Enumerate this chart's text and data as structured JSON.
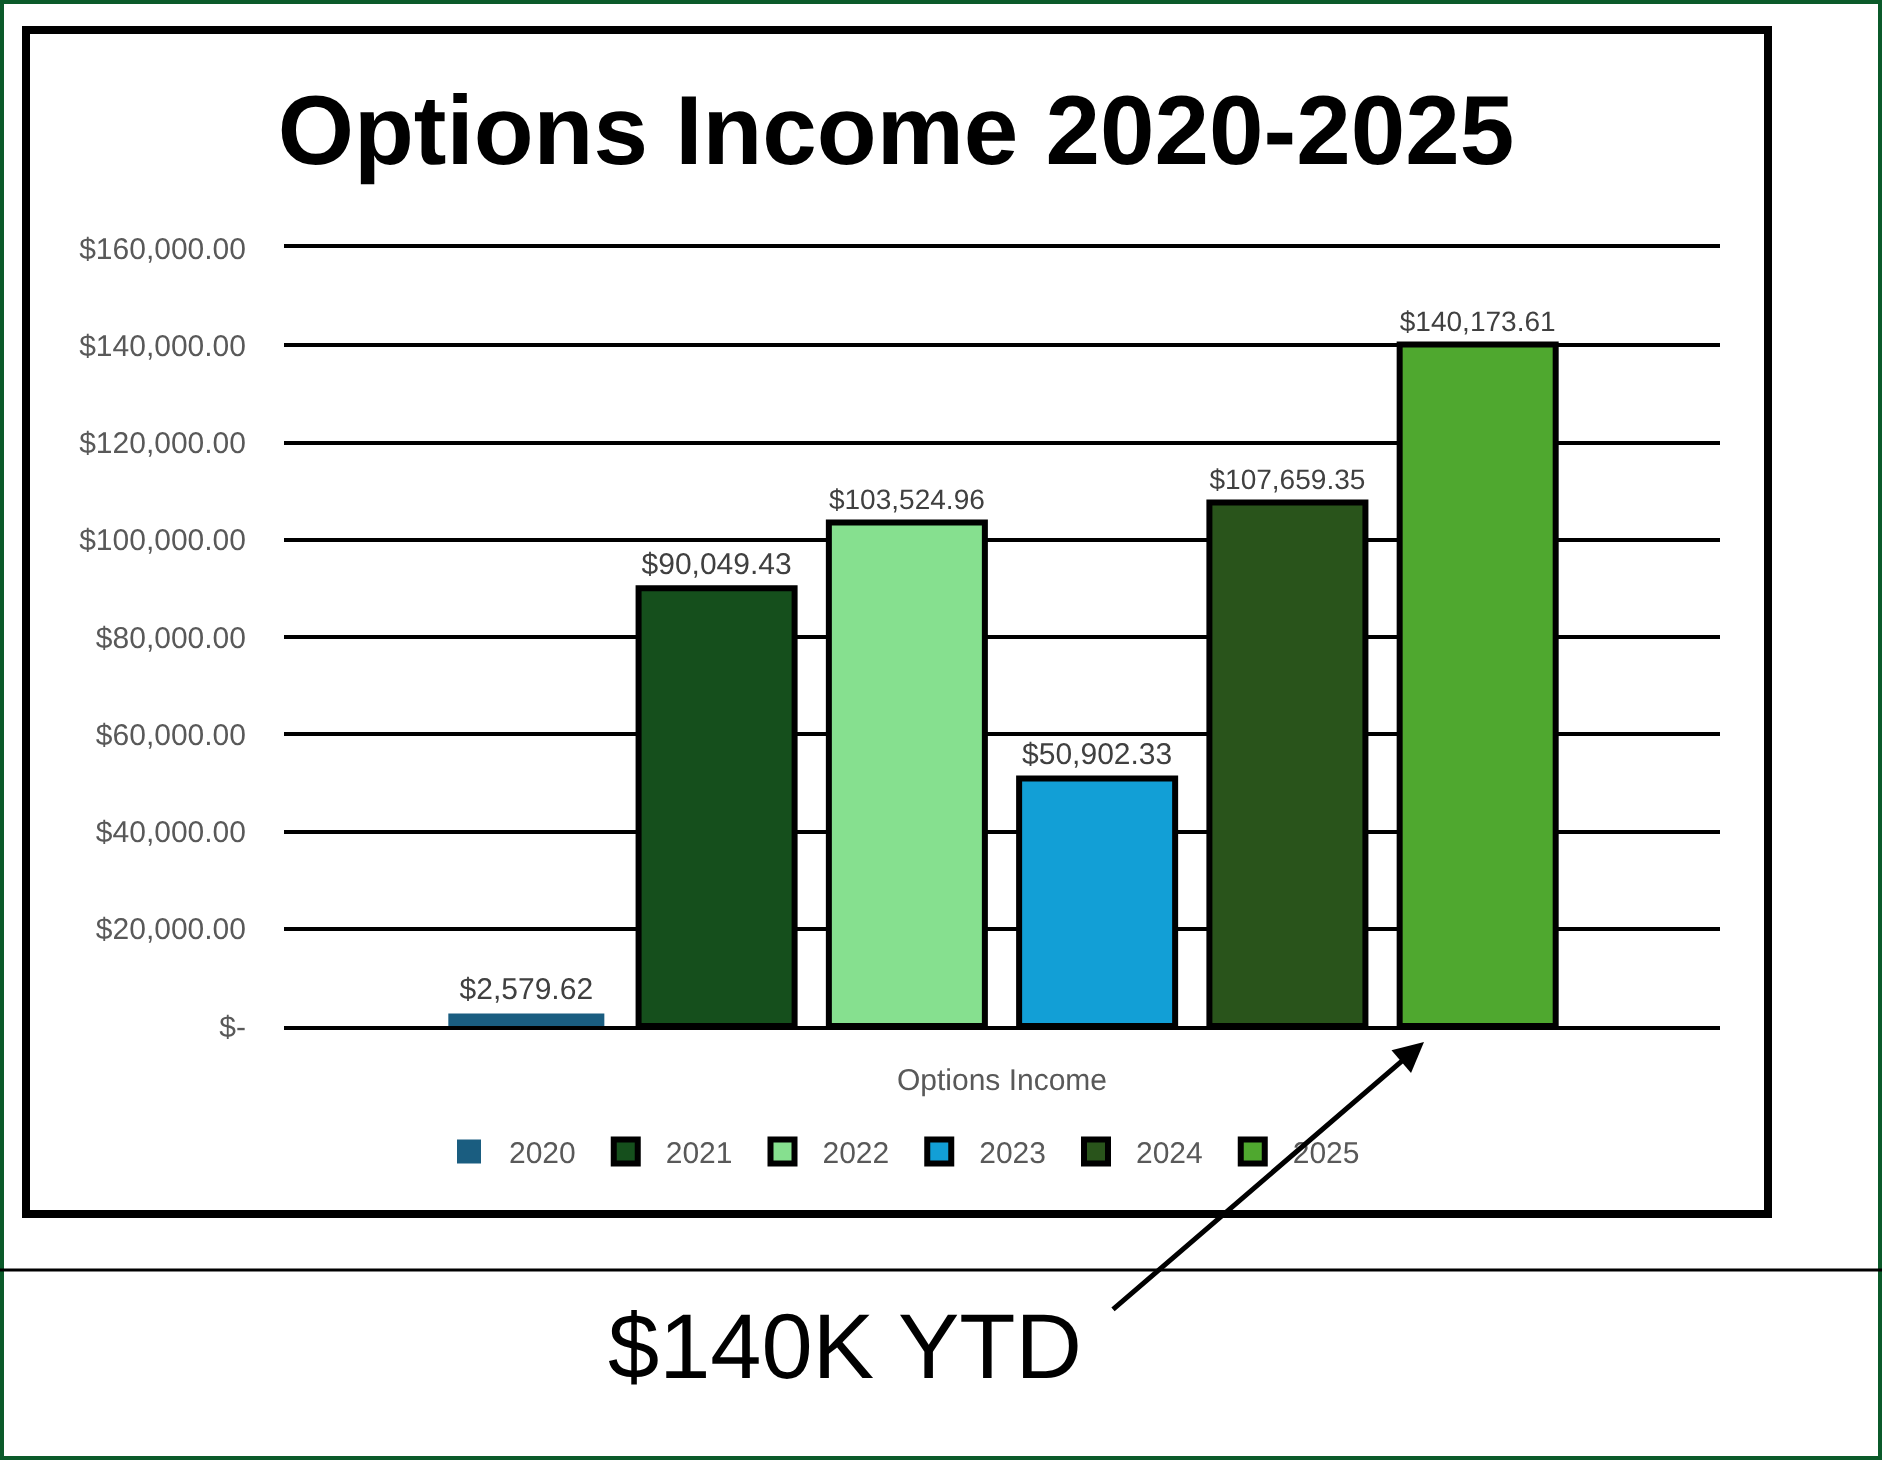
{
  "chart_data": {
    "type": "bar",
    "title": "Options Income 2020-2025",
    "categories": [
      "Options Income"
    ],
    "series": [
      {
        "name": "2020",
        "color": "#1a5d80",
        "values": [
          2579.62
        ],
        "value_labels": [
          "$2,579.62"
        ]
      },
      {
        "name": "2021",
        "color": "#154f1c",
        "values": [
          90049.43
        ],
        "value_labels": [
          "$90,049.43"
        ]
      },
      {
        "name": "2022",
        "color": "#86e08f",
        "values": [
          103524.96
        ],
        "value_labels": [
          "$103,524.96"
        ]
      },
      {
        "name": "2023",
        "color": "#129fd6",
        "values": [
          50902.33
        ],
        "value_labels": [
          "$50,902.33"
        ]
      },
      {
        "name": "2024",
        "color": "#29541b",
        "values": [
          107659.35
        ],
        "value_labels": [
          "$107,659.35"
        ]
      },
      {
        "name": "2025",
        "color": "#4fa82f",
        "values": [
          140173.61
        ],
        "value_labels": [
          "$140,173.61"
        ]
      }
    ],
    "ylim": [
      0,
      160000
    ],
    "yticks": [
      {
        "value": 0,
        "label": "$-"
      },
      {
        "value": 20000,
        "label": "$20,000.00"
      },
      {
        "value": 40000,
        "label": "$40,000.00"
      },
      {
        "value": 60000,
        "label": "$60,000.00"
      },
      {
        "value": 80000,
        "label": "$80,000.00"
      },
      {
        "value": 100000,
        "label": "$100,000.00"
      },
      {
        "value": 120000,
        "label": "$120,000.00"
      },
      {
        "value": 140000,
        "label": "$140,000.00"
      },
      {
        "value": 160000,
        "label": "$160,000.00"
      }
    ],
    "grid": "y",
    "legend": "bottom",
    "annotations": [
      "$140K YTD"
    ]
  }
}
